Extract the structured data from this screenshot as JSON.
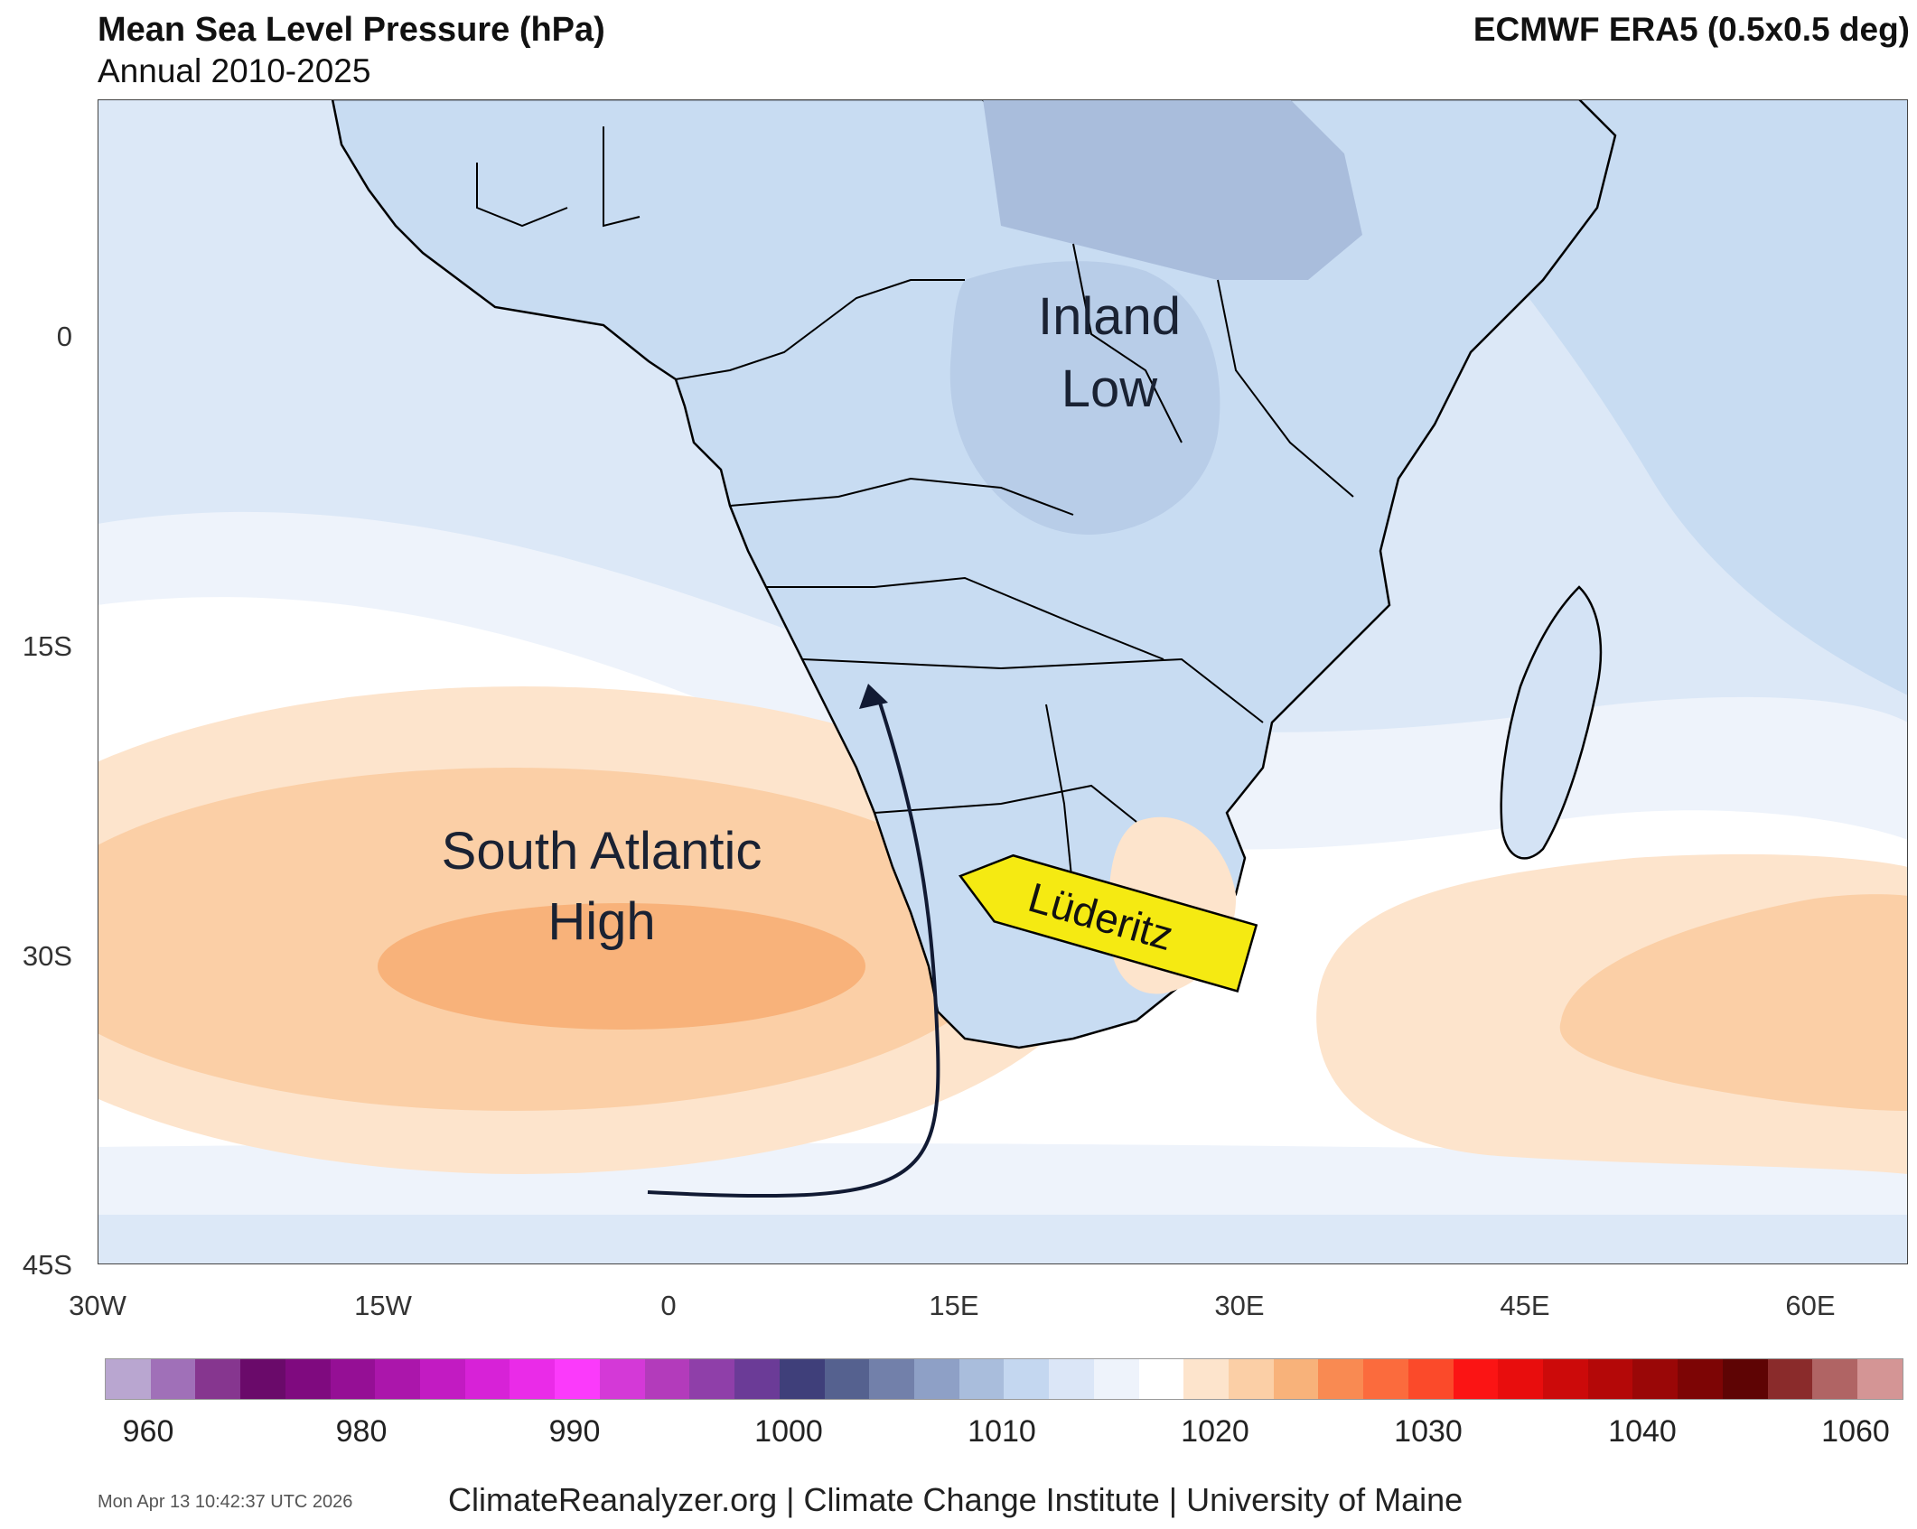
{
  "header": {
    "title": "Mean Sea Level Pressure (hPa)",
    "subtitle": "Annual 2010-2025",
    "source": "ECMWF ERA5 (0.5x0.5 deg)"
  },
  "map": {
    "lat_labels": [
      "0",
      "15S",
      "30S",
      "45S"
    ],
    "lon_labels": [
      "30W",
      "15W",
      "0",
      "15E",
      "30E",
      "45E",
      "60E"
    ],
    "annotations": {
      "inland_low_line1": "Inland",
      "inland_low_line2": "Low",
      "south_atlantic_line1": "South Atlantic",
      "south_atlantic_line2": "High",
      "luderitz": "Lüderitz"
    },
    "colors": {
      "ocean_low": "#c8dcf2",
      "ocean_mid": "#dce8f7",
      "near_neutral": "#eef3fb",
      "neutral": "#ffffff",
      "high_1": "#fde4cc",
      "high_2": "#fbcfa6",
      "high_3": "#f8b27a",
      "land_low": "#a9bddc",
      "callout": "#f5ea12"
    }
  },
  "colorbar": {
    "tick_labels": [
      "960",
      "980",
      "990",
      "1000",
      "1010",
      "1020",
      "1030",
      "1040",
      "1060"
    ],
    "colors": [
      "#b9a6d0",
      "#a070b8",
      "#86368f",
      "#6a0a6a",
      "#7f0a7f",
      "#950f95",
      "#ab16ab",
      "#c21bc2",
      "#d722d7",
      "#ea2be8",
      "#fb3afb",
      "#d439d7",
      "#b33bbb",
      "#8f3fa9",
      "#6b3b97",
      "#3f3f7a",
      "#55618f",
      "#7280aa",
      "#8ea0c6",
      "#a9bddc",
      "#c4d7f0",
      "#dbe6f7",
      "#eef3fb",
      "#ffffff",
      "#fde4cc",
      "#fbcfa6",
      "#f8b27a",
      "#f98a52",
      "#fb6b3d",
      "#fb4a2a",
      "#fb1414",
      "#e80d0d",
      "#cc0a0a",
      "#b40808",
      "#9a0707",
      "#7d0505",
      "#5e0404",
      "#8a2b2b",
      "#b06464",
      "#d49595"
    ]
  },
  "footer": {
    "timestamp": "Mon Apr 13 10:42:37 UTC 2026",
    "credits": "ClimateReanalyzer.org | Climate Change Institute | University of Maine"
  }
}
